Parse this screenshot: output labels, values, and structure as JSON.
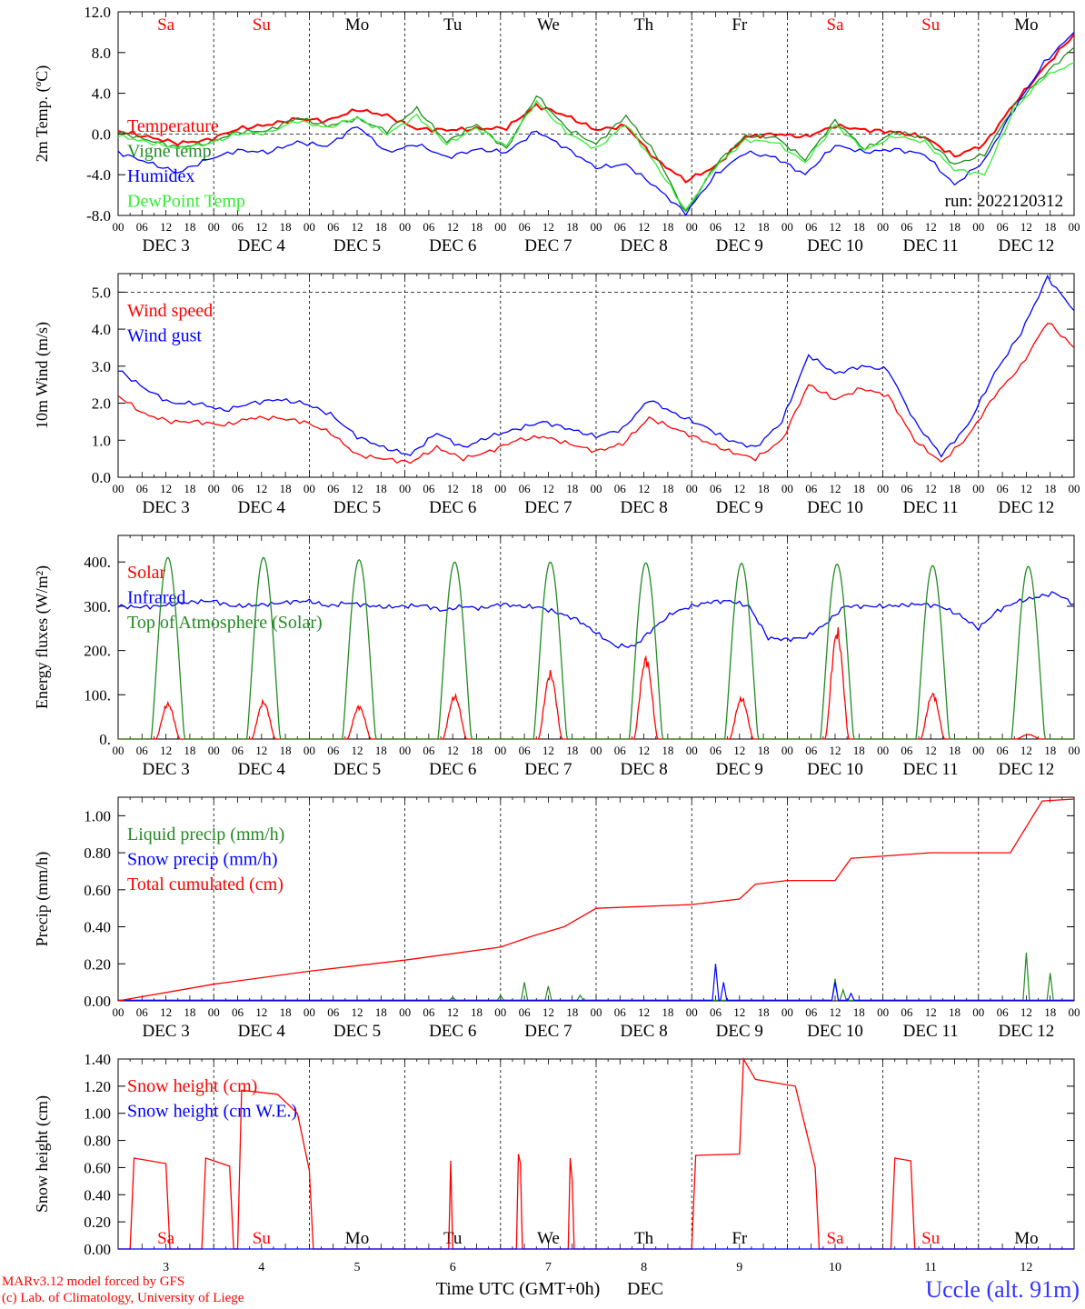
{
  "run_label": "run: 2022120312",
  "x_axis": {
    "hour_labels": [
      "00",
      "06",
      "12",
      "18"
    ],
    "final_hour_label": "00",
    "date_labels": [
      "DEC  3",
      "DEC  4",
      "DEC  5",
      "DEC  6",
      "DEC  7",
      "DEC  8",
      "DEC  9",
      "DEC 10",
      "DEC 11",
      "DEC 12"
    ],
    "weekdays": [
      "Sa",
      "Su",
      "Mo",
      "Tu",
      "We",
      "Th",
      "Fr",
      "Sa",
      "Su",
      "Mo"
    ],
    "weekend_flags": [
      true,
      true,
      false,
      false,
      false,
      false,
      false,
      true,
      true,
      false
    ],
    "bottom_day_numbers": [
      "3",
      "4",
      "5",
      "6",
      "7",
      "8",
      "9",
      "10",
      "11",
      "12"
    ],
    "bottom_title": "Time UTC (GMT+0h)",
    "bottom_unit": "DEC"
  },
  "footer": {
    "model_line": "MARv3.12 model forced by GFS",
    "copyright_line": "(c) Lab. of Climatology, University of Liege",
    "station": "Uccle (alt. 91m)"
  },
  "colors": {
    "red": "#ff0000",
    "green": "#228b22",
    "blue": "#0000ff",
    "lime": "#33ee33",
    "station": "#3333ff"
  },
  "chart_data": [
    {
      "type": "line",
      "ylabel": "2m Temp. (ºC)",
      "ylim": [
        -8,
        12
      ],
      "yticks": [
        "-8.0",
        "-4.0",
        "0.0",
        "4.0",
        "8.0",
        "12.0"
      ],
      "ytick_values": [
        -8,
        -4,
        0,
        4,
        8,
        12
      ],
      "ref_lines": [
        0
      ],
      "x_hours_step": 12,
      "series": [
        {
          "name": "Temperature",
          "color": "red",
          "values": [
            0.3,
            -0.3,
            -0.9,
            -0.6,
            0.5,
            0.9,
            1.5,
            1.3,
            2.4,
            1.8,
            0.5,
            0.4,
            0.5,
            0.6,
            2.8,
            1.8,
            0.4,
            0.8,
            -2.5,
            -4.6,
            -3.2,
            -0.3,
            0,
            -0.3,
            0.8,
            0.4,
            0.2,
            -0.3,
            -2.2,
            -1.0,
            3.0,
            6.5,
            9.8
          ]
        },
        {
          "name": "Vigne temp",
          "color": "green",
          "values": [
            0.2,
            -0.6,
            -1.3,
            -0.9,
            0.2,
            0.3,
            1.6,
            0.8,
            1.5,
            0.3,
            2.5,
            -0.8,
            1.0,
            -1.5,
            3.8,
            0.6,
            -1.0,
            1.8,
            -2.0,
            -7.8,
            -3.0,
            -0.2,
            -0.3,
            -2.5,
            1.3,
            -1.5,
            0.2,
            -0.4,
            -3.0,
            -2.0,
            2.8,
            5.8,
            8.5
          ]
        },
        {
          "name": "Humidex",
          "color": "blue",
          "values": [
            -1.8,
            -2.8,
            -3.8,
            -2.5,
            -1.6,
            -1.8,
            -0.8,
            -1.2,
            0.8,
            -1.8,
            -1.0,
            -2.3,
            -1.5,
            -1.8,
            0.3,
            -1.4,
            -3.3,
            -3.0,
            -5.2,
            -7.8,
            -4.0,
            -1.8,
            -2.3,
            -4.0,
            -1.1,
            -1.8,
            -1.5,
            -2.0,
            -5.0,
            -2.6,
            2.5,
            7.0,
            10.0
          ]
        },
        {
          "name": "DewPoint Temp",
          "color": "lime",
          "values": [
            -0.2,
            -0.8,
            -1.4,
            -1.0,
            0.0,
            0.1,
            1.3,
            0.6,
            1.6,
            0.0,
            1.8,
            -1.0,
            0.6,
            -1.2,
            3.2,
            0.2,
            -1.5,
            1.0,
            -3.0,
            -7.5,
            -3.2,
            -0.6,
            -0.8,
            -2.8,
            0.9,
            -1.6,
            -0.2,
            -0.8,
            -3.5,
            -4.0,
            2.4,
            5.6,
            7.0
          ]
        }
      ],
      "legend": [
        "Temperature",
        "Vigne temp",
        "Humidex",
        "DewPoint Temp"
      ],
      "legend_colors": [
        "red",
        "green",
        "blue",
        "lime"
      ]
    },
    {
      "type": "line",
      "ylabel": "10m Wind (m/s)",
      "ylim": [
        0,
        5.5
      ],
      "yticks": [
        "0.0",
        "1.0",
        "2.0",
        "3.0",
        "4.0",
        "5.0"
      ],
      "ytick_values": [
        0,
        1,
        2,
        3,
        4,
        5
      ],
      "ref_lines": [
        5.0
      ],
      "x_hours_step": 12,
      "series": [
        {
          "name": "Wind speed",
          "color": "red",
          "values": [
            2.2,
            1.7,
            1.5,
            1.5,
            1.4,
            1.6,
            1.6,
            1.5,
            1.2,
            0.6,
            0.5,
            0.4,
            0.8,
            0.5,
            0.7,
            1.0,
            1.1,
            0.9,
            0.7,
            0.9,
            1.6,
            1.3,
            1.0,
            0.7,
            0.5,
            1.0,
            2.5,
            2.1,
            2.4,
            2.2,
            1.0,
            0.4,
            1.1,
            2.2,
            3.0,
            4.2,
            3.5
          ]
        },
        {
          "name": "Wind gust",
          "color": "blue",
          "values": [
            2.9,
            2.4,
            2.0,
            2.0,
            1.8,
            2.0,
            2.1,
            2.0,
            1.7,
            1.1,
            0.8,
            0.6,
            1.2,
            0.8,
            1.1,
            1.3,
            1.5,
            1.3,
            1.1,
            1.3,
            2.1,
            1.7,
            1.4,
            1.0,
            0.8,
            1.5,
            3.3,
            2.8,
            3.0,
            2.9,
            1.5,
            0.6,
            1.4,
            2.8,
            3.9,
            5.4,
            4.5
          ]
        }
      ],
      "legend": [
        "Wind speed",
        "Wind gust"
      ],
      "legend_colors": [
        "red",
        "blue"
      ]
    },
    {
      "type": "line",
      "ylabel": "Energy fluxes (W/m²)",
      "ylim": [
        0,
        460
      ],
      "yticks": [
        "0.",
        "100.",
        "200.",
        "300.",
        "400."
      ],
      "ytick_values": [
        0,
        100,
        200,
        300,
        400
      ],
      "ref_lines": [],
      "x_hours_step": 6,
      "series": [
        {
          "name": "Solar",
          "color": "red",
          "daily_peak": [
            78,
            82,
            72,
            95,
            145,
            178,
            90,
            238,
            100,
            10
          ]
        },
        {
          "name": "Infrared",
          "color": "blue",
          "values": [
            300,
            298,
            300,
            305,
            310,
            312,
            300,
            302,
            305,
            310,
            312,
            300,
            308,
            302,
            298,
            300,
            302,
            290,
            300,
            295,
            305,
            300,
            298,
            285,
            270,
            240,
            210,
            210,
            250,
            285,
            300,
            310,
            312,
            300,
            228,
            225,
            230,
            260,
            300,
            300,
            300,
            302,
            305,
            300,
            280,
            250,
            290,
            310,
            320,
            330,
            305
          ]
        },
        {
          "name": "Top of Atmosphere (Solar)",
          "color": "green",
          "daily_peak": [
            410,
            410,
            405,
            400,
            400,
            398,
            397,
            395,
            392,
            390
          ]
        }
      ],
      "legend": [
        "Solar",
        "Infrared",
        "Top of Atmosphere (Solar)"
      ],
      "legend_colors": [
        "red",
        "blue",
        "green"
      ]
    },
    {
      "type": "line",
      "ylabel": "Precip (mm/h)",
      "ylim": [
        0,
        1.1
      ],
      "yticks": [
        "0.00",
        "0.20",
        "0.40",
        "0.60",
        "0.80",
        "1.00"
      ],
      "ytick_values": [
        0,
        0.2,
        0.4,
        0.6,
        0.8,
        1.0
      ],
      "ref_lines": [],
      "x_hours_step": 6,
      "series": [
        {
          "name": "Liquid precip (mm/h)",
          "color": "green",
          "spikes": [
            [
              84,
              0.02
            ],
            [
              96,
              0.03
            ],
            [
              102,
              0.1
            ],
            [
              108,
              0.08
            ],
            [
              116,
              0.03
            ],
            [
              180,
              0.12
            ],
            [
              182,
              0.06
            ],
            [
              228,
              0.26
            ],
            [
              234,
              0.15
            ]
          ]
        },
        {
          "name": "Snow precip (mm/h)",
          "color": "blue",
          "spikes": [
            [
              150,
              0.2
            ],
            [
              152,
              0.1
            ],
            [
              180,
              0.1
            ],
            [
              184,
              0.04
            ]
          ]
        },
        {
          "name": "Total cumulated (cm)",
          "color": "red",
          "values": [
            [
              0,
              0.0
            ],
            [
              24,
              0.09
            ],
            [
              48,
              0.16
            ],
            [
              72,
              0.22
            ],
            [
              96,
              0.29
            ],
            [
              104,
              0.35
            ],
            [
              112,
              0.4
            ],
            [
              120,
              0.5
            ],
            [
              144,
              0.52
            ],
            [
              156,
              0.55
            ],
            [
              160,
              0.63
            ],
            [
              168,
              0.65
            ],
            [
              180,
              0.65
            ],
            [
              184,
              0.77
            ],
            [
              204,
              0.8
            ],
            [
              224,
              0.8
            ],
            [
              232,
              1.08
            ],
            [
              240,
              1.09
            ]
          ]
        }
      ],
      "legend": [
        "Liquid precip (mm/h)",
        "Snow precip (mm/h)",
        "Total cumulated (cm)"
      ],
      "legend_colors": [
        "green",
        "blue",
        "red"
      ]
    },
    {
      "type": "line",
      "ylabel": "Snow height (cm)",
      "ylim": [
        0,
        1.4
      ],
      "yticks": [
        "0.00",
        "0.20",
        "0.40",
        "0.60",
        "0.80",
        "1.00",
        "1.20",
        "1.40"
      ],
      "ytick_values": [
        0,
        0.2,
        0.4,
        0.6,
        0.8,
        1.0,
        1.2,
        1.4
      ],
      "ref_lines": [],
      "x_hours_step": 24,
      "series": [
        {
          "name": "Snow height (cm)",
          "color": "red",
          "values": [
            [
              0,
              0
            ],
            [
              3,
              0
            ],
            [
              4,
              0.67
            ],
            [
              12,
              0.63
            ],
            [
              13,
              0
            ],
            [
              21,
              0
            ],
            [
              22,
              0.67
            ],
            [
              28,
              0.61
            ],
            [
              29,
              0
            ],
            [
              30,
              0
            ],
            [
              31,
              1.17
            ],
            [
              40,
              1.14
            ],
            [
              45,
              1.0
            ],
            [
              48,
              0.58
            ],
            [
              49,
              0
            ],
            [
              83,
              0
            ],
            [
              83.5,
              0.65
            ],
            [
              84,
              0
            ],
            [
              100,
              0
            ],
            [
              100.5,
              0.7
            ],
            [
              101,
              0.63
            ],
            [
              101.5,
              0
            ],
            [
              113,
              0
            ],
            [
              113.5,
              0.67
            ],
            [
              114,
              0.5
            ],
            [
              114.5,
              0
            ],
            [
              144,
              0
            ],
            [
              145,
              0.69
            ],
            [
              156,
              0.7
            ],
            [
              157,
              1.4
            ],
            [
              160,
              1.25
            ],
            [
              170,
              1.2
            ],
            [
              175,
              0.6
            ],
            [
              176,
              0
            ],
            [
              194,
              0
            ],
            [
              195,
              0.67
            ],
            [
              199,
              0.65
            ],
            [
              200,
              0
            ],
            [
              240,
              0
            ]
          ]
        },
        {
          "name": "Snow height (cm W.E.)",
          "color": "blue",
          "values": [
            [
              0,
              0
            ],
            [
              240,
              0
            ]
          ]
        }
      ],
      "legend": [
        "Snow height (cm)",
        "Snow height (cm W.E.)"
      ],
      "legend_colors": [
        "red",
        "blue"
      ]
    }
  ]
}
